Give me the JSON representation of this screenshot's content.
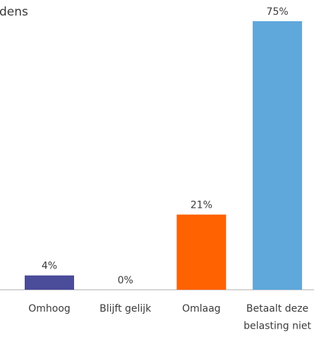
{
  "chart_data": {
    "type": "bar",
    "title": "dens",
    "categories": [
      "Omhoog",
      "Blijft gelijk",
      "Omlaag",
      "Betaalt deze belasting niet"
    ],
    "values": [
      4,
      0,
      21,
      75
    ],
    "value_labels": [
      "4%",
      "0%",
      "21%",
      "75%"
    ],
    "colors": [
      "#4b4c9a",
      "#a5a5a5",
      "#ff6200",
      "#5fa8dc"
    ]
  }
}
